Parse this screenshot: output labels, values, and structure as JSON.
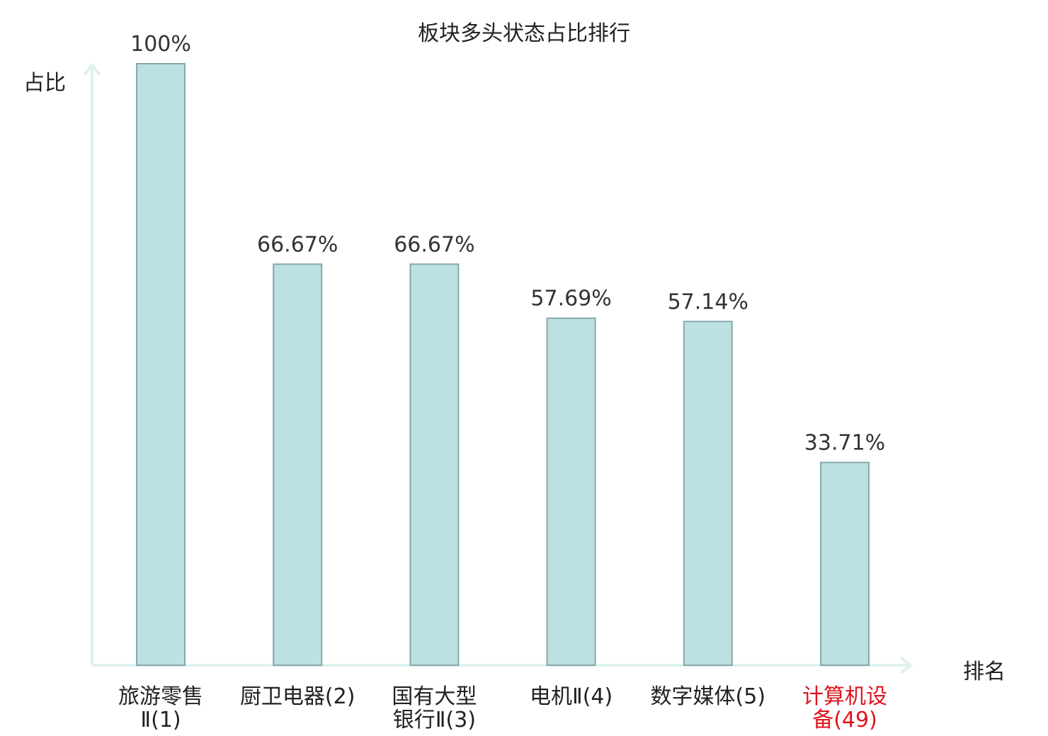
{
  "chart_data": {
    "type": "bar",
    "title": "板块多头状态占比排行",
    "xlabel": "排名",
    "ylabel": "占比",
    "ylim": [
      0,
      100
    ],
    "grid": false,
    "categories": [
      {
        "lines": [
          "旅游零售",
          "Ⅱ(1)"
        ],
        "highlight": false
      },
      {
        "lines": [
          "厨卫电器(2)"
        ],
        "highlight": false
      },
      {
        "lines": [
          "国有大型",
          "银行Ⅱ(3)"
        ],
        "highlight": false
      },
      {
        "lines": [
          "电机Ⅱ(4)"
        ],
        "highlight": false
      },
      {
        "lines": [
          "数字媒体(5)"
        ],
        "highlight": false
      },
      {
        "lines": [
          "计算机设",
          "备(49)"
        ],
        "highlight": true
      }
    ],
    "values": [
      100,
      66.67,
      66.67,
      57.69,
      57.14,
      33.71
    ],
    "value_labels": [
      "100%",
      "66.67%",
      "66.67%",
      "57.69%",
      "57.14%",
      "33.71%"
    ],
    "colors": {
      "bar_fill": "#bde0e3",
      "bar_stroke": "#88a8ab",
      "axis": "#dff2ef",
      "label_text": "#333333",
      "highlight_text": "#e0141e"
    }
  }
}
